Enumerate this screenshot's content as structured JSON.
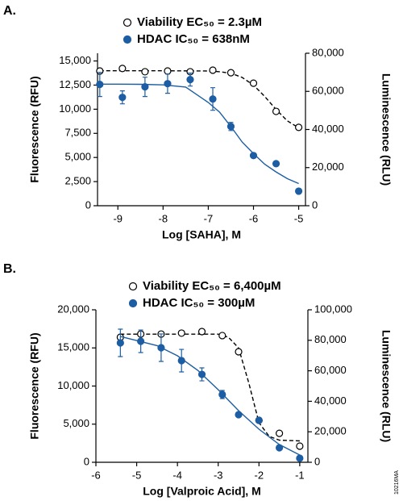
{
  "figure_id": "10216MA",
  "chart_data": [
    {
      "type": "scatter",
      "panel_label": "A.",
      "xlabel": "Log [SAHA], M",
      "ylabel": "Fluorescence (RFU)",
      "y2label": "Luminescence (RLU)",
      "xlim": [
        -9.45,
        -4.85
      ],
      "xticks": [
        -9,
        -8,
        -7,
        -6,
        -5
      ],
      "ylim": [
        0,
        15800
      ],
      "yticks": [
        0,
        {
          "value": 2500,
          "label": "2,500"
        },
        {
          "value": 5000,
          "label": "5,000"
        },
        {
          "value": 7500,
          "label": "7,500"
        },
        {
          "value": 10000,
          "label": "10,000"
        },
        {
          "value": 12500,
          "label": "12,500"
        },
        {
          "value": 15000,
          "label": "15,000"
        }
      ],
      "y2lim": [
        0,
        80000
      ],
      "y2ticks": [
        0,
        {
          "value": 20000,
          "label": "20,000"
        },
        {
          "value": 40000,
          "label": "40,000"
        },
        {
          "value": 60000,
          "label": "60,000"
        },
        {
          "value": 80000,
          "label": "80,000"
        }
      ],
      "series": [
        {
          "name": "Viability EC₅₀ = 2.3µM",
          "color": "#000000",
          "marker": "open",
          "axis": "y2",
          "x": [
            -9.4,
            -8.9,
            -8.4,
            -7.9,
            -7.4,
            -6.9,
            -6.5,
            -6.0,
            -5.5,
            -5.0
          ],
          "values": [
            70700,
            72000,
            70300,
            70700,
            70300,
            71100,
            69800,
            64300,
            49500,
            41100
          ],
          "fit": {
            "line_style": "dashed",
            "x": [
              -9.4,
              -8,
              -7,
              -6.75,
              -6.5,
              -6.25,
              -6,
              -5.75,
              -5.5,
              -5.25,
              -5
            ],
            "values": [
              70800,
              70800,
              70700,
              70300,
              69500,
              67300,
              63300,
              57300,
              50500,
              44500,
              40900
            ]
          }
        },
        {
          "name": "HDAC IC₅₀ = 638nM",
          "color": "#1c5da3",
          "marker": "filled",
          "x": [
            -9.4,
            -8.9,
            -8.4,
            -7.9,
            -7.4,
            -6.9,
            -6.5,
            -6.0,
            -5.5,
            -5.0
          ],
          "values": [
            12570,
            11230,
            12320,
            12650,
            13070,
            11060,
            8210,
            5200,
            4360,
            1510
          ],
          "errors": [
            1250,
            670,
            1000,
            1000,
            670,
            1170,
            420,
            null,
            null,
            null
          ],
          "fit": {
            "line_style": "solid",
            "x": [
              -9.4,
              -9,
              -8.5,
              -8,
              -7.5,
              -7,
              -6.75,
              -6.5,
              -6.25,
              -6,
              -5.75,
              -5.5,
              -5.25,
              -5
            ],
            "values": [
              12600,
              12600,
              12580,
              12520,
              12300,
              10700,
              9700,
              8200,
              6600,
              5400,
              4300,
              3500,
              2800,
              2300
            ]
          }
        }
      ]
    },
    {
      "type": "scatter",
      "panel_label": "B.",
      "xlabel": "Log [Valproic Acid], M",
      "ylabel": "Fluorescence (RFU)",
      "y2label": "Luminescence (RLU)",
      "xlim": [
        -6,
        -0.8
      ],
      "xticks": [
        -6,
        -5,
        -4,
        -3,
        -2,
        -1
      ],
      "ylim": [
        0,
        20000
      ],
      "yticks": [
        0,
        {
          "value": 5000,
          "label": "5,000"
        },
        {
          "value": 10000,
          "label": "10,000"
        },
        {
          "value": 15000,
          "label": "15,000"
        },
        {
          "value": 20000,
          "label": "20,000"
        }
      ],
      "y2lim": [
        0,
        100000
      ],
      "y2ticks": [
        0,
        {
          "value": 20000,
          "label": "20,000"
        },
        {
          "value": 40000,
          "label": "40,000"
        },
        {
          "value": 60000,
          "label": "60,000"
        },
        {
          "value": 80000,
          "label": "80,000"
        },
        {
          "value": 100000,
          "label": "100,000"
        }
      ],
      "series": [
        {
          "name": "Viability EC₅₀ = 6,400µM",
          "color": "#000000",
          "marker": "open",
          "axis": "y2",
          "x": [
            -5.4,
            -4.9,
            -4.4,
            -3.9,
            -3.4,
            -2.9,
            -2.5,
            -2.0,
            -1.5,
            -1.0
          ],
          "values": [
            82000,
            84100,
            84100,
            84700,
            85700,
            83100,
            72500,
            27500,
            19000,
            10600
          ],
          "fit": {
            "line_style": "dashed",
            "x": [
              -5.4,
              -4,
              -3,
              -2.75,
              -2.5,
              -2.25,
              -2,
              -1.75,
              -1.5,
              -1
            ],
            "values": [
              84000,
              84000,
              84000,
              82000,
              75000,
              52000,
              26000,
              17000,
              14500,
              14000
            ]
          }
        },
        {
          "name": "HDAC IC₅₀ = 300µM",
          "color": "#1c5da3",
          "marker": "filled",
          "x": [
            -5.4,
            -4.9,
            -4.4,
            -3.9,
            -3.4,
            -2.9,
            -2.5,
            -2.0,
            -1.5,
            -1.0
          ],
          "values": [
            15660,
            15870,
            15030,
            13330,
            11530,
            8890,
            6240,
            5500,
            1900,
            530
          ],
          "errors": [
            1800,
            1480,
            1800,
            1480,
            850,
            530,
            null,
            null,
            null,
            null
          ],
          "fit": {
            "line_style": "solid",
            "x": [
              -5.4,
              -4.5,
              -4,
              -3.5,
              -3,
              -2.5,
              -2,
              -1.5,
              -1
            ],
            "values": [
              16500,
              15300,
              13970,
              12060,
              9520,
              6770,
              4340,
              2330,
              950
            ]
          }
        }
      ]
    }
  ]
}
